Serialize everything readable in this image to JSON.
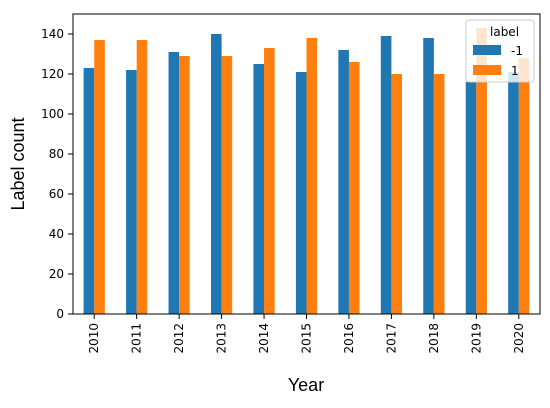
{
  "chart_data": {
    "type": "bar",
    "xlabel": "Year",
    "ylabel": "Label count",
    "categories": [
      "2010",
      "2011",
      "2012",
      "2013",
      "2014",
      "2015",
      "2016",
      "2017",
      "2018",
      "2019",
      "2020"
    ],
    "series": [
      {
        "name": "-1",
        "color": "#1f77b4",
        "values": [
          123,
          122,
          131,
          140,
          125,
          121,
          132,
          139,
          138,
          116,
          121
        ]
      },
      {
        "name": "1",
        "color": "#ff7f0e",
        "values": [
          137,
          137,
          129,
          129,
          133,
          138,
          126,
          120,
          120,
          143,
          128
        ]
      }
    ],
    "yticks": [
      0,
      20,
      40,
      60,
      80,
      100,
      120,
      140
    ],
    "ylim": [
      0,
      150
    ],
    "legend": {
      "title": "label",
      "placement": "top-right"
    },
    "grid": false
  }
}
